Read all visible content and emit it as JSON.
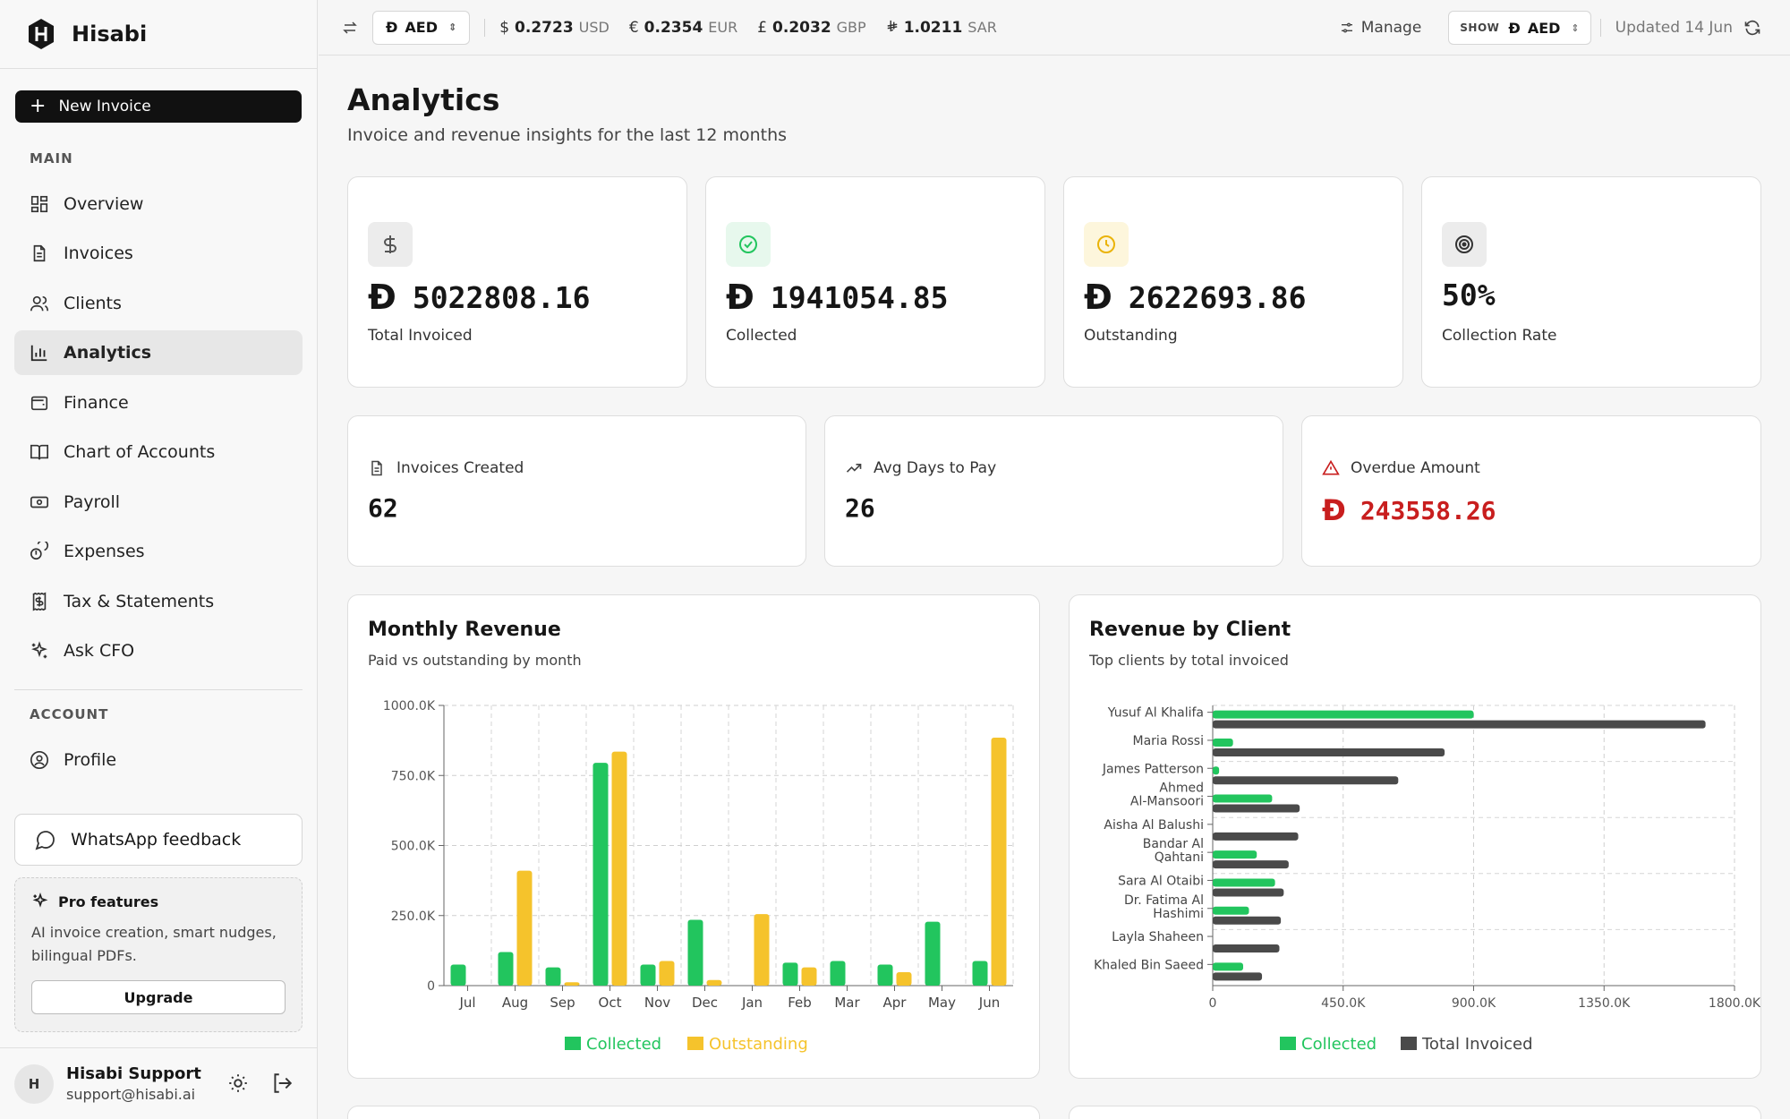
{
  "app": {
    "name": "Hisabi"
  },
  "sidebar": {
    "new_invoice": "New Invoice",
    "main_label": "MAIN",
    "items": [
      {
        "label": "Overview",
        "icon": "grid-icon"
      },
      {
        "label": "Invoices",
        "icon": "file-icon"
      },
      {
        "label": "Clients",
        "icon": "users-icon"
      },
      {
        "label": "Analytics",
        "icon": "bar-chart-icon",
        "active": true
      },
      {
        "label": "Finance",
        "icon": "wallet-icon"
      },
      {
        "label": "Chart of Accounts",
        "icon": "book-icon"
      },
      {
        "label": "Payroll",
        "icon": "banknote-icon"
      },
      {
        "label": "Expenses",
        "icon": "coins-icon"
      },
      {
        "label": "Tax & Statements",
        "icon": "receipt-icon"
      },
      {
        "label": "Ask CFO",
        "icon": "sparkles-icon"
      }
    ],
    "account_label": "ACCOUNT",
    "account_items": [
      {
        "label": "Profile",
        "icon": "user-circle-icon"
      }
    ],
    "whatsapp": "WhatsApp feedback",
    "pro": {
      "title": "Pro features",
      "desc": "AI invoice creation, smart nudges, bilingual PDFs.",
      "button": "Upgrade"
    },
    "user": {
      "initial": "H",
      "name": "Hisabi Support",
      "email": "support@hisabi.ai"
    }
  },
  "topbar": {
    "base_currency": "AED",
    "rates": [
      {
        "symbol": "$",
        "value": "0.2723",
        "code": "USD"
      },
      {
        "symbol": "€",
        "value": "0.2354",
        "code": "EUR"
      },
      {
        "symbol": "£",
        "value": "0.2032",
        "code": "GBP"
      },
      {
        "symbol": "⃁",
        "value": "1.0211",
        "code": "SAR"
      }
    ],
    "manage": "Manage",
    "show_label": "SHOW",
    "show_currency": "AED",
    "updated": "Updated 14 Jun"
  },
  "page": {
    "title": "Analytics",
    "subtitle": "Invoice and revenue insights for the last 12 months"
  },
  "stats": [
    {
      "value": "5022808.16",
      "label": "Total Invoiced",
      "icon": "dollar-icon",
      "currency": true,
      "color": "#555555",
      "bg": "#ececec"
    },
    {
      "value": "1941054.85",
      "label": "Collected",
      "icon": "check-circle-icon",
      "currency": true,
      "color": "#22c55e",
      "bg": "#e7f8ed"
    },
    {
      "value": "2622693.86",
      "label": "Outstanding",
      "icon": "clock-icon",
      "currency": true,
      "color": "#eab308",
      "bg": "#fdf6dc"
    },
    {
      "value": "50%",
      "label": "Collection Rate",
      "icon": "target-icon",
      "currency": false,
      "color": "#333333",
      "bg": "#ececec"
    }
  ],
  "mini_stats": [
    {
      "label": "Invoices Created",
      "value": "62",
      "icon": "file-icon"
    },
    {
      "label": "Avg Days to Pay",
      "value": "26",
      "icon": "trending-up-icon"
    },
    {
      "label": "Overdue Amount",
      "value": "243558.26",
      "icon": "alert-triangle-icon",
      "danger": true,
      "color": "#c81e1e"
    }
  ],
  "charts": {
    "monthly": {
      "title": "Monthly Revenue",
      "subtitle": "Paid vs outstanding by month"
    },
    "clients": {
      "title": "Revenue by Client",
      "subtitle": "Top clients by total invoiced"
    }
  },
  "chart_data": [
    {
      "type": "bar",
      "categories": [
        "Jul",
        "Aug",
        "Sep",
        "Oct",
        "Nov",
        "Dec",
        "Jan",
        "Feb",
        "Mar",
        "Apr",
        "May",
        "Jun"
      ],
      "series": [
        {
          "name": "Collected",
          "color": "#22c55e",
          "values": [
            75000,
            120000,
            65000,
            795000,
            75000,
            235000,
            0,
            82000,
            88000,
            75000,
            228000,
            88000
          ]
        },
        {
          "name": "Outstanding",
          "color": "#f5c32c",
          "values": [
            0,
            410000,
            12000,
            835000,
            88000,
            20000,
            255000,
            65000,
            0,
            48000,
            0,
            885000
          ]
        }
      ],
      "ylim": [
        0,
        1000000
      ],
      "yticks": [
        "0",
        "250.0K",
        "500.0K",
        "750.0K",
        "1000.0K"
      ],
      "legend": "bottom",
      "grid": true
    },
    {
      "type": "bar",
      "orientation": "horizontal",
      "categories": [
        "Yusuf Al Khalifa",
        "Maria Rossi",
        "James Patterson",
        "Ahmed Al-Mansoori",
        "Aisha Al Balushi",
        "Bandar Al Qahtani",
        "Sara Al Otaibi",
        "Dr. Fatima Al Hashimi",
        "Layla Shaheen",
        "Khaled Bin Saeed"
      ],
      "series": [
        {
          "name": "Collected",
          "color": "#22c55e",
          "values": [
            900000,
            70000,
            22000,
            205000,
            0,
            152000,
            215000,
            125000,
            0,
            105000
          ]
        },
        {
          "name": "Total Invoiced",
          "color": "#4a4a4a",
          "values": [
            1700000,
            800000,
            640000,
            300000,
            295000,
            262000,
            245000,
            235000,
            230000,
            170000
          ]
        }
      ],
      "xlim": [
        0,
        1800000
      ],
      "xticks": [
        "0",
        "450.0K",
        "900.0K",
        "1350.0K",
        "1800.0K"
      ],
      "legend": "bottom",
      "grid": true
    }
  ]
}
